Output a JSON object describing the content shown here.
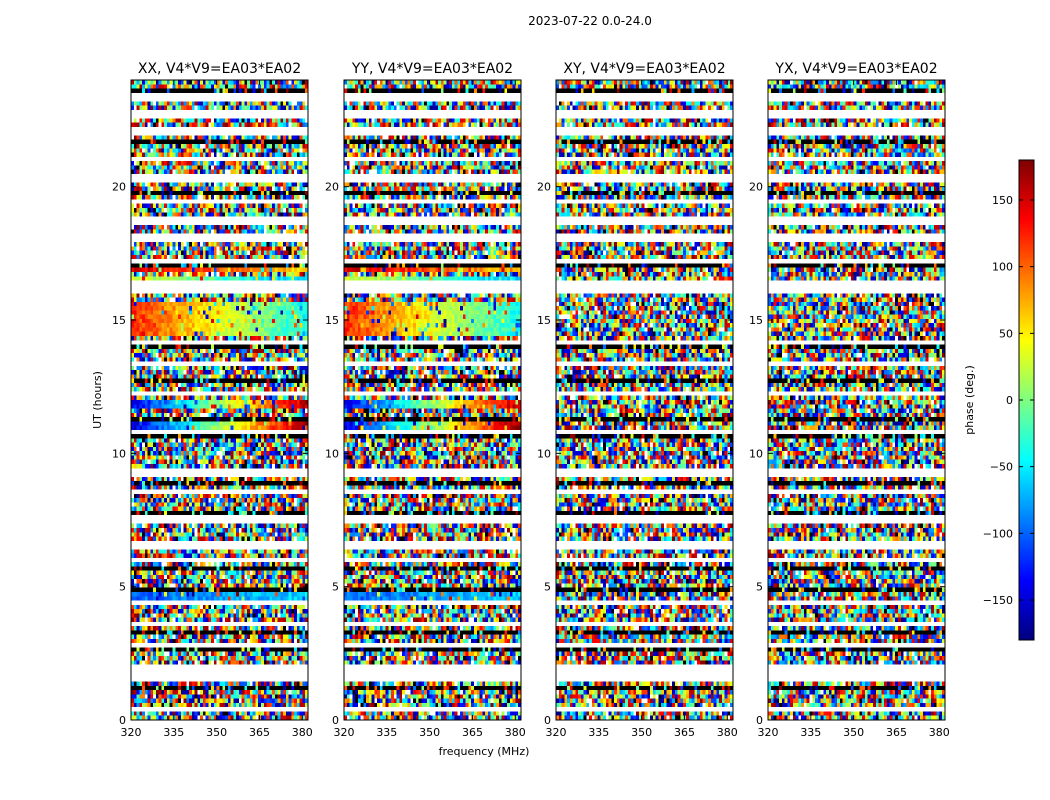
{
  "chart_data": {
    "type": "heatmap",
    "suptitle": "2023-07-22 0.0-24.0",
    "panels": [
      {
        "title": "XX, V4*V9=EA03*EA02",
        "strong_features": true
      },
      {
        "title": "YY, V4*V9=EA03*EA02",
        "strong_features": true
      },
      {
        "title": "XY, V4*V9=EA03*EA02",
        "strong_features": false
      },
      {
        "title": "YX, V4*V9=EA03*EA02",
        "strong_features": false
      }
    ],
    "xlabel": "frequency (MHz)",
    "ylabel": "UT (hours)",
    "xlim": [
      320,
      382
    ],
    "ylim": [
      0,
      24
    ],
    "xticks": [
      320,
      335,
      350,
      365,
      380
    ],
    "yticks": [
      0,
      5,
      10,
      15,
      20
    ],
    "colorbar": {
      "label": "phase (deg.)",
      "range": [
        -180,
        180
      ],
      "ticks": [
        -150,
        -100,
        -50,
        0,
        50,
        100,
        150
      ],
      "colormap": "jet",
      "colors": [
        "#00007f",
        "#0000ff",
        "#007fff",
        "#00ffff",
        "#7fff7f",
        "#ffff00",
        "#ff7f00",
        "#ff0000",
        "#7f0000"
      ]
    },
    "blank_rows_hours": [
      0.4,
      1.6,
      1.75,
      2.05,
      2.85,
      3.6,
      4.4,
      6.0,
      6.55,
      7.55,
      8.55,
      9.25,
      10.85,
      12.25,
      13.4,
      14.2,
      16.1,
      16.3,
      17.2,
      18.1,
      18.7,
      19.4,
      20.35,
      21.0,
      22.1,
      22.7,
      23.35
    ],
    "dark_rows_hours": [
      1.15,
      2.6,
      3.3,
      4.85,
      5.7,
      7.2,
      7.8,
      8.85,
      9.9,
      10.6,
      11.3,
      12.7,
      14.05,
      17.0,
      17.75,
      18.4,
      19.7,
      21.7,
      22.9,
      23.55
    ],
    "coherent_bands": [
      {
        "center_hours": 4.6,
        "width_hours": 0.35,
        "start_deg": -100,
        "end_deg": -60,
        "panels": [
          0,
          1
        ]
      },
      {
        "center_hours": 7.75,
        "width_hours": 0.15,
        "start_deg": -130,
        "end_deg": 90,
        "panels": [
          0,
          1
        ]
      },
      {
        "center_hours": 11.1,
        "width_hours": 0.45,
        "start_deg": -150,
        "end_deg": 170,
        "panels": [
          0,
          1
        ]
      },
      {
        "center_hours": 11.85,
        "width_hours": 0.25,
        "start_deg": -140,
        "end_deg": 160,
        "panels": [
          0,
          1
        ]
      },
      {
        "center_hours": 15.1,
        "width_hours": 1.3,
        "start_deg": 120,
        "end_deg": -40,
        "panels": [
          0,
          1
        ]
      },
      {
        "center_hours": 16.55,
        "width_hours": 0.3,
        "start_deg": 30,
        "end_deg": -70,
        "panels": [
          0,
          1
        ]
      },
      {
        "center_hours": 16.85,
        "width_hours": 0.2,
        "start_deg": 150,
        "end_deg": 60,
        "panels": [
          0,
          1
        ]
      }
    ]
  }
}
